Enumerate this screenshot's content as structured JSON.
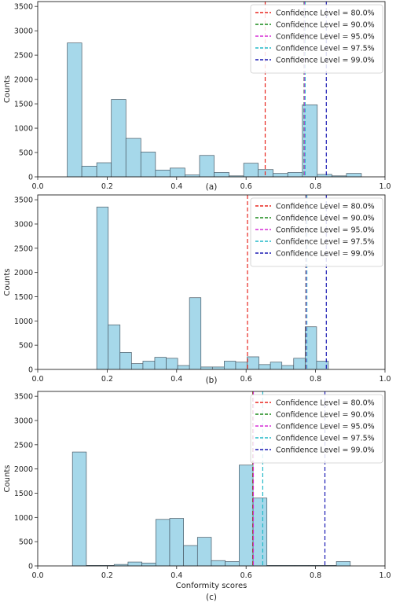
{
  "chart_data": [
    {
      "type": "bar",
      "caption": "(a)",
      "xlabel": "",
      "ylabel": "Counts",
      "xlim": [
        0.0,
        1.0
      ],
      "ylim": [
        0,
        3600
      ],
      "xticks": [
        "0.0",
        "0.2",
        "0.4",
        "0.6",
        "0.8",
        "1.0"
      ],
      "yticks": [
        "0",
        "500",
        "1000",
        "1500",
        "2000",
        "2500",
        "3000",
        "3500"
      ],
      "bar_color": "#a6d8ea",
      "bins": [
        {
          "x0": 0.085,
          "x1": 0.127,
          "value": 2750
        },
        {
          "x0": 0.127,
          "x1": 0.17,
          "value": 220
        },
        {
          "x0": 0.17,
          "x1": 0.212,
          "value": 290
        },
        {
          "x0": 0.212,
          "x1": 0.254,
          "value": 1590
        },
        {
          "x0": 0.254,
          "x1": 0.297,
          "value": 790
        },
        {
          "x0": 0.297,
          "x1": 0.339,
          "value": 510
        },
        {
          "x0": 0.339,
          "x1": 0.381,
          "value": 140
        },
        {
          "x0": 0.381,
          "x1": 0.424,
          "value": 180
        },
        {
          "x0": 0.424,
          "x1": 0.466,
          "value": 40
        },
        {
          "x0": 0.466,
          "x1": 0.508,
          "value": 440
        },
        {
          "x0": 0.508,
          "x1": 0.551,
          "value": 90
        },
        {
          "x0": 0.551,
          "x1": 0.593,
          "value": 20
        },
        {
          "x0": 0.593,
          "x1": 0.635,
          "value": 280
        },
        {
          "x0": 0.635,
          "x1": 0.678,
          "value": 150
        },
        {
          "x0": 0.678,
          "x1": 0.72,
          "value": 70
        },
        {
          "x0": 0.72,
          "x1": 0.762,
          "value": 90
        },
        {
          "x0": 0.762,
          "x1": 0.805,
          "value": 1480
        },
        {
          "x0": 0.805,
          "x1": 0.847,
          "value": 50
        },
        {
          "x0": 0.847,
          "x1": 0.889,
          "value": 20
        },
        {
          "x0": 0.889,
          "x1": 0.932,
          "value": 70
        }
      ],
      "thresholds": [
        {
          "label": "Confidence Level = 80.0%",
          "x": 0.655,
          "color": "#e8261f"
        },
        {
          "label": "Confidence Level = 90.0%",
          "x": 0.767,
          "color": "#1a8a1a"
        },
        {
          "label": "Confidence Level = 95.0%",
          "x": 0.768,
          "color": "#d62fd6"
        },
        {
          "label": "Confidence Level = 97.5%",
          "x": 0.77,
          "color": "#22b8c8"
        },
        {
          "label": "Confidence Level = 99.0%",
          "x": 0.831,
          "color": "#1a1ab4"
        }
      ],
      "legend_position": "top-right"
    },
    {
      "type": "bar",
      "caption": "(b)",
      "xlabel": "",
      "ylabel": "Counts",
      "xlim": [
        0.0,
        1.0
      ],
      "ylim": [
        0,
        3600
      ],
      "xticks": [
        "0.0",
        "0.2",
        "0.4",
        "0.6",
        "0.8",
        "1.0"
      ],
      "yticks": [
        "0",
        "500",
        "1000",
        "1500",
        "2000",
        "2500",
        "3000",
        "3500"
      ],
      "bar_color": "#a6d8ea",
      "bins": [
        {
          "x0": 0.17,
          "x1": 0.203,
          "value": 3350
        },
        {
          "x0": 0.203,
          "x1": 0.237,
          "value": 920
        },
        {
          "x0": 0.237,
          "x1": 0.27,
          "value": 350
        },
        {
          "x0": 0.27,
          "x1": 0.303,
          "value": 120
        },
        {
          "x0": 0.303,
          "x1": 0.337,
          "value": 170
        },
        {
          "x0": 0.337,
          "x1": 0.37,
          "value": 250
        },
        {
          "x0": 0.37,
          "x1": 0.403,
          "value": 230
        },
        {
          "x0": 0.403,
          "x1": 0.437,
          "value": 80
        },
        {
          "x0": 0.437,
          "x1": 0.47,
          "value": 1480
        },
        {
          "x0": 0.47,
          "x1": 0.503,
          "value": 50
        },
        {
          "x0": 0.503,
          "x1": 0.537,
          "value": 50
        },
        {
          "x0": 0.537,
          "x1": 0.57,
          "value": 170
        },
        {
          "x0": 0.57,
          "x1": 0.603,
          "value": 150
        },
        {
          "x0": 0.603,
          "x1": 0.637,
          "value": 260
        },
        {
          "x0": 0.637,
          "x1": 0.67,
          "value": 100
        },
        {
          "x0": 0.67,
          "x1": 0.703,
          "value": 150
        },
        {
          "x0": 0.703,
          "x1": 0.737,
          "value": 80
        },
        {
          "x0": 0.737,
          "x1": 0.77,
          "value": 230
        },
        {
          "x0": 0.77,
          "x1": 0.803,
          "value": 880
        },
        {
          "x0": 0.803,
          "x1": 0.837,
          "value": 170
        }
      ],
      "thresholds": [
        {
          "label": "Confidence Level = 80.0%",
          "x": 0.604,
          "color": "#e8261f"
        },
        {
          "label": "Confidence Level = 90.0%",
          "x": 0.772,
          "color": "#1a8a1a"
        },
        {
          "label": "Confidence Level = 95.0%",
          "x": 0.773,
          "color": "#d62fd6"
        },
        {
          "label": "Confidence Level = 97.5%",
          "x": 0.775,
          "color": "#22b8c8"
        },
        {
          "label": "Confidence Level = 99.0%",
          "x": 0.831,
          "color": "#1a1ab4"
        }
      ],
      "legend_position": "top-right"
    },
    {
      "type": "bar",
      "caption": "(c)",
      "xlabel": "Conformity scores",
      "ylabel": "Counts",
      "xlim": [
        0.0,
        1.0
      ],
      "ylim": [
        0,
        3600
      ],
      "xticks": [
        "0.0",
        "0.2",
        "0.4",
        "0.6",
        "0.8",
        "1.0"
      ],
      "yticks": [
        "0",
        "500",
        "1000",
        "1500",
        "2000",
        "2500",
        "3000",
        "3500"
      ],
      "bar_color": "#a6d8ea",
      "bins": [
        {
          "x0": 0.1,
          "x1": 0.14,
          "value": 2350
        },
        {
          "x0": 0.14,
          "x1": 0.18,
          "value": 10
        },
        {
          "x0": 0.18,
          "x1": 0.22,
          "value": 10
        },
        {
          "x0": 0.22,
          "x1": 0.26,
          "value": 30
        },
        {
          "x0": 0.26,
          "x1": 0.3,
          "value": 80
        },
        {
          "x0": 0.3,
          "x1": 0.34,
          "value": 60
        },
        {
          "x0": 0.34,
          "x1": 0.38,
          "value": 960
        },
        {
          "x0": 0.38,
          "x1": 0.42,
          "value": 980
        },
        {
          "x0": 0.42,
          "x1": 0.46,
          "value": 420
        },
        {
          "x0": 0.46,
          "x1": 0.5,
          "value": 590
        },
        {
          "x0": 0.5,
          "x1": 0.54,
          "value": 110
        },
        {
          "x0": 0.54,
          "x1": 0.58,
          "value": 90
        },
        {
          "x0": 0.58,
          "x1": 0.62,
          "value": 2080
        },
        {
          "x0": 0.62,
          "x1": 0.66,
          "value": 1400
        },
        {
          "x0": 0.66,
          "x1": 0.7,
          "value": 10
        },
        {
          "x0": 0.7,
          "x1": 0.74,
          "value": 10
        },
        {
          "x0": 0.74,
          "x1": 0.78,
          "value": 10
        },
        {
          "x0": 0.78,
          "x1": 0.82,
          "value": 10
        },
        {
          "x0": 0.82,
          "x1": 0.86,
          "value": 10
        },
        {
          "x0": 0.86,
          "x1": 0.9,
          "value": 90
        }
      ],
      "thresholds": [
        {
          "label": "Confidence Level = 80.0%",
          "x": 0.619,
          "color": "#e8261f"
        },
        {
          "label": "Confidence Level = 90.0%",
          "x": 0.62,
          "color": "#1a8a1a"
        },
        {
          "label": "Confidence Level = 95.0%",
          "x": 0.621,
          "color": "#d62fd6"
        },
        {
          "label": "Confidence Level = 97.5%",
          "x": 0.648,
          "color": "#22b8c8"
        },
        {
          "label": "Confidence Level = 99.0%",
          "x": 0.827,
          "color": "#1a1ab4"
        }
      ],
      "legend_position": "top-right"
    }
  ]
}
